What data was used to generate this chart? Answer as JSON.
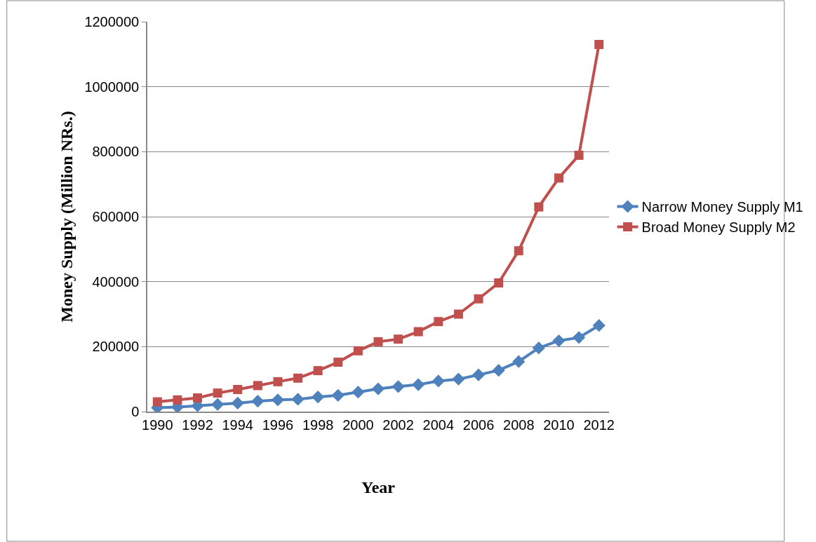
{
  "chart_data": {
    "type": "line",
    "xlabel": "Year",
    "ylabel": "Money Supply (Million NRs.)",
    "x": [
      1990,
      1991,
      1992,
      1993,
      1994,
      1995,
      1996,
      1997,
      1998,
      1999,
      2000,
      2001,
      2002,
      2003,
      2004,
      2005,
      2006,
      2007,
      2008,
      2009,
      2010,
      2011,
      2012
    ],
    "xlim": [
      1989.5,
      2012.5
    ],
    "xticks": [
      1990,
      1992,
      1994,
      1996,
      1998,
      2000,
      2002,
      2004,
      2006,
      2008,
      2010,
      2012
    ],
    "ylim": [
      0,
      1200000
    ],
    "yticks": [
      0,
      200000,
      400000,
      600000,
      800000,
      1000000,
      1200000
    ],
    "grid": "y",
    "legend": "right",
    "line_style": "solid",
    "series": [
      {
        "name": "Narrow Money Supply M1",
        "color": "#4f81bd",
        "marker": "diamond",
        "values": [
          12000,
          14000,
          18000,
          22000,
          26000,
          32000,
          36000,
          38000,
          45000,
          50000,
          60000,
          70000,
          77000,
          83000,
          94000,
          100000,
          113000,
          127000,
          154000,
          196000,
          218000,
          228000,
          265000
        ]
      },
      {
        "name": "Broad Money Supply M2",
        "color": "#c0504d",
        "marker": "square",
        "values": [
          30000,
          36000,
          42000,
          57000,
          68000,
          80000,
          92000,
          103000,
          126000,
          152000,
          187000,
          215000,
          223000,
          246000,
          277000,
          300000,
          347000,
          396000,
          495000,
          630000,
          719000,
          789000,
          1130000
        ]
      }
    ]
  }
}
